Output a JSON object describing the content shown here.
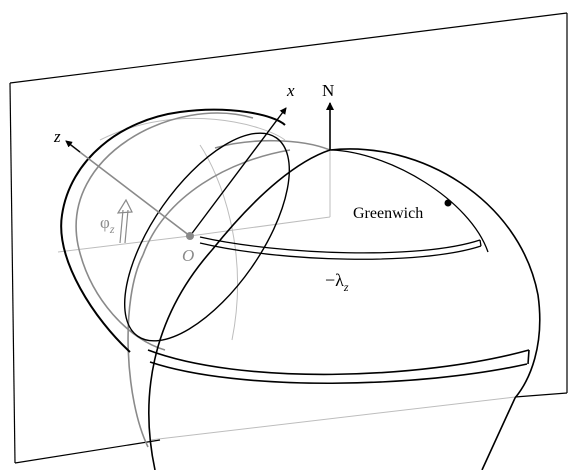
{
  "diagram": {
    "type": "3d-geometry",
    "labels": {
      "north": "N",
      "x_axis": "x",
      "z_axis": "z",
      "origin": "O",
      "greenwich": "Greenwich",
      "lambda_symbol": "−λ",
      "lambda_subscript": "z",
      "phi_symbol": "φ",
      "phi_subscript": "z"
    },
    "colors": {
      "line": "#000000",
      "gray": "#8a8a8a",
      "light_gray": "#bdbdbd"
    }
  }
}
